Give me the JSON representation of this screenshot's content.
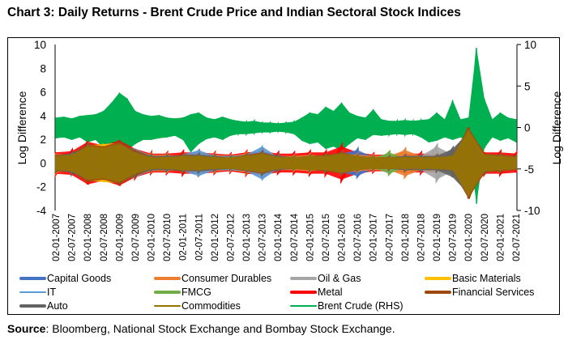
{
  "title": "Chart 3: Daily Returns - Brent Crude Price and Indian Sectoral Stock Indices",
  "source_label": "Source",
  "source_text": ": Bloomberg, National Stock Exchange and Bombay Stock Exchange.",
  "chart_data": {
    "type": "line",
    "title": "Chart 3: Daily Returns - Brent Crude Price and Indian Sectoral Stock Indices",
    "ylabel_left": "Log Difference",
    "ylabel_right": "Log Difference",
    "ylim_left": [
      -4,
      10
    ],
    "ylim_right": [
      -10,
      10
    ],
    "yticks_left": [
      "10",
      "8",
      "6",
      "4",
      "2",
      "0",
      "-2",
      "-4"
    ],
    "yticks_right": [
      "10",
      "5",
      "0",
      "-5",
      "-10"
    ],
    "xtick_labels": [
      "02-01-2007",
      "02-07-2007",
      "02-01-2008",
      "02-07-2008",
      "02-01-2009",
      "02-07-2009",
      "02-01-2010",
      "02-07-2010",
      "02-01-2011",
      "02-07-2011",
      "02-01-2012",
      "02-07-2012",
      "02-01-2013",
      "02-07-2013",
      "02-01-2014",
      "02-07-2014",
      "02-01-2015",
      "02-07-2015",
      "02-01-2016",
      "02-07-2016",
      "02-01-2017",
      "02-07-2017",
      "02-01-2018",
      "02-07-2018",
      "02-01-2019",
      "02-07-2019",
      "02-01-2020",
      "02-07-2020",
      "02-01-2021",
      "02-07-2021"
    ],
    "grid": false,
    "legend_position": "bottom",
    "note": "",
    "index_series_x": [
      "2007-01",
      "2007-07",
      "2008-01",
      "2008-07",
      "2009-01",
      "2009-07",
      "2010-01",
      "2010-07",
      "2011-01",
      "2011-07",
      "2012-01",
      "2012-07",
      "2013-01",
      "2013-07",
      "2014-01",
      "2014-07",
      "2015-01",
      "2015-07",
      "2016-01",
      "2016-07",
      "2017-01",
      "2017-07",
      "2018-01",
      "2018-07",
      "2019-01",
      "2019-07",
      "2020-01",
      "2020-07",
      "2021-01",
      "2021-07"
    ],
    "series": [
      {
        "name": "Capital Goods",
        "axis": "left",
        "color": "#4472C4",
        "width": 3,
        "abs_range": [
          0.7,
          0.8,
          1.5,
          1.2,
          1.7,
          1.0,
          0.6,
          0.6,
          0.6,
          0.7,
          0.6,
          0.5,
          0.7,
          0.8,
          0.6,
          0.5,
          0.6,
          0.6,
          0.8,
          1.1,
          0.5,
          0.5,
          0.6,
          0.6,
          0.6,
          0.7,
          2.6,
          0.7,
          0.6,
          0.5
        ]
      },
      {
        "name": "Consumer Durables",
        "axis": "left",
        "color": "#ED7D31",
        "width": 3,
        "abs_range": [
          0.8,
          0.7,
          1.4,
          1.3,
          1.6,
          1.1,
          0.7,
          0.7,
          0.6,
          0.8,
          0.7,
          0.6,
          0.8,
          0.8,
          0.6,
          0.6,
          0.7,
          0.6,
          0.8,
          0.7,
          0.6,
          0.6,
          1.1,
          0.6,
          0.6,
          0.7,
          2.7,
          0.8,
          0.7,
          0.6
        ]
      },
      {
        "name": "Oil & Gas",
        "axis": "left",
        "color": "#A5A5A5",
        "width": 3,
        "abs_range": [
          0.6,
          0.7,
          1.4,
          1.2,
          1.6,
          0.9,
          0.5,
          0.5,
          0.6,
          0.6,
          0.5,
          0.5,
          0.6,
          0.7,
          0.5,
          0.5,
          0.5,
          0.6,
          0.8,
          0.6,
          0.5,
          0.5,
          0.5,
          0.6,
          1.4,
          0.7,
          2.9,
          0.7,
          0.6,
          0.5
        ]
      },
      {
        "name": "Basic Materials",
        "axis": "left",
        "color": "#FFC000",
        "width": 3,
        "abs_range": [
          0.6,
          0.7,
          1.5,
          1.6,
          1.7,
          1.0,
          0.6,
          0.6,
          0.6,
          0.7,
          0.6,
          0.5,
          0.7,
          0.8,
          0.6,
          0.5,
          0.6,
          0.6,
          0.9,
          0.6,
          0.5,
          0.6,
          0.6,
          0.6,
          0.6,
          0.7,
          2.5,
          0.7,
          0.6,
          0.5
        ]
      },
      {
        "name": "IT",
        "axis": "left",
        "color": "#5B9BD5",
        "width": 1.5,
        "abs_range": [
          0.6,
          0.7,
          1.3,
          1.1,
          1.5,
          1.2,
          0.6,
          0.6,
          0.7,
          1.1,
          0.6,
          0.6,
          0.7,
          1.4,
          0.5,
          0.5,
          0.5,
          0.6,
          0.7,
          0.5,
          0.5,
          0.5,
          0.5,
          0.5,
          0.5,
          0.6,
          2.4,
          0.7,
          0.6,
          0.5
        ]
      },
      {
        "name": "FMCG",
        "axis": "left",
        "color": "#70AD47",
        "width": 3,
        "abs_range": [
          0.5,
          0.5,
          1.0,
          0.9,
          1.1,
          0.7,
          0.4,
          0.4,
          0.5,
          0.5,
          0.4,
          0.4,
          0.5,
          0.6,
          0.4,
          0.4,
          0.4,
          0.5,
          0.6,
          0.4,
          0.4,
          0.9,
          0.4,
          0.4,
          0.4,
          0.5,
          2.2,
          0.5,
          0.5,
          0.4
        ]
      },
      {
        "name": "Metal",
        "axis": "left",
        "color": "#FF0000",
        "width": 3,
        "abs_range": [
          0.9,
          1.0,
          1.8,
          1.5,
          1.9,
          1.2,
          0.8,
          0.8,
          0.9,
          0.9,
          0.8,
          0.7,
          0.9,
          1.0,
          0.8,
          0.8,
          0.9,
          0.9,
          1.4,
          0.9,
          0.7,
          0.7,
          0.8,
          0.8,
          0.8,
          0.9,
          2.8,
          0.9,
          0.9,
          0.8
        ]
      },
      {
        "name": "Financial Services",
        "axis": "left",
        "color": "#9E480E",
        "width": 3,
        "abs_range": [
          0.7,
          0.8,
          1.6,
          1.4,
          1.8,
          1.1,
          0.6,
          0.6,
          0.7,
          0.7,
          0.6,
          0.5,
          0.7,
          0.9,
          0.6,
          0.5,
          0.6,
          0.7,
          0.9,
          0.6,
          0.5,
          0.5,
          0.6,
          0.6,
          0.6,
          0.7,
          3.0,
          0.8,
          0.7,
          0.6
        ]
      },
      {
        "name": "Auto",
        "axis": "left",
        "color": "#636363",
        "width": 3,
        "abs_range": [
          0.6,
          0.8,
          1.4,
          1.2,
          1.6,
          0.9,
          0.6,
          0.6,
          0.6,
          0.7,
          0.6,
          0.5,
          0.6,
          0.8,
          0.6,
          0.5,
          0.6,
          0.6,
          0.8,
          0.6,
          0.5,
          0.5,
          0.6,
          0.6,
          0.6,
          1.2,
          2.6,
          0.7,
          0.6,
          0.5
        ]
      },
      {
        "name": "Commodities",
        "axis": "left",
        "color": "#997300",
        "width": 1.5,
        "abs_range": [
          0.6,
          0.7,
          1.4,
          1.3,
          1.6,
          0.9,
          0.5,
          0.5,
          0.6,
          0.6,
          0.5,
          0.5,
          0.6,
          0.8,
          0.5,
          0.5,
          0.6,
          0.6,
          0.8,
          0.6,
          0.5,
          0.5,
          0.5,
          0.5,
          0.5,
          0.6,
          2.8,
          0.7,
          0.6,
          0.5
        ]
      },
      {
        "name": "Brent Crude (RHS)",
        "axis": "right",
        "color": "#00B050",
        "width": 1.5,
        "x": [
          "2007-01",
          "2007-04",
          "2007-07",
          "2007-10",
          "2008-01",
          "2008-04",
          "2008-07",
          "2008-10",
          "2009-01",
          "2009-04",
          "2009-07",
          "2009-10",
          "2010-01",
          "2010-04",
          "2010-07",
          "2010-10",
          "2011-01",
          "2011-04",
          "2011-07",
          "2011-10",
          "2012-01",
          "2012-04",
          "2012-07",
          "2012-10",
          "2013-01",
          "2013-04",
          "2013-07",
          "2013-10",
          "2014-01",
          "2014-04",
          "2014-07",
          "2014-10",
          "2015-01",
          "2015-04",
          "2015-07",
          "2015-10",
          "2016-01",
          "2016-04",
          "2016-07",
          "2016-10",
          "2017-01",
          "2017-04",
          "2017-07",
          "2017-10",
          "2018-01",
          "2018-04",
          "2018-07",
          "2018-10",
          "2019-01",
          "2019-04",
          "2019-07",
          "2019-10",
          "2020-01",
          "2020-04",
          "2020-07",
          "2020-10",
          "2021-01",
          "2021-04",
          "2021-07"
        ],
        "high": [
          1.2,
          1.3,
          1.1,
          1.4,
          1.5,
          1.6,
          2.0,
          3.0,
          4.2,
          3.5,
          2.0,
          1.6,
          1.4,
          1.5,
          1.2,
          1.1,
          1.2,
          1.6,
          1.8,
          1.2,
          1.0,
          1.3,
          1.0,
          0.8,
          0.7,
          0.8,
          0.6,
          0.6,
          0.5,
          0.6,
          0.7,
          1.2,
          1.8,
          1.6,
          2.5,
          2.0,
          3.0,
          1.8,
          1.4,
          1.2,
          2.2,
          1.0,
          0.8,
          0.8,
          0.9,
          0.8,
          0.9,
          1.0,
          1.8,
          1.0,
          3.3,
          1.0,
          1.2,
          9.6,
          3.5,
          1.0,
          1.8,
          1.2,
          1.0
        ],
        "low": [
          -1.3,
          -1.2,
          -1.5,
          -1.2,
          -1.8,
          -1.5,
          -2.5,
          -3.8,
          -3.5,
          -2.8,
          -2.0,
          -1.5,
          -1.5,
          -1.3,
          -1.2,
          -1.0,
          -1.5,
          -3.0,
          -2.0,
          -1.4,
          -1.2,
          -1.5,
          -1.0,
          -0.8,
          -0.8,
          -0.7,
          -0.6,
          -0.6,
          -0.5,
          -0.6,
          -0.8,
          -1.6,
          -2.0,
          -1.8,
          -2.6,
          -2.3,
          -2.8,
          -2.0,
          -1.3,
          -1.5,
          -0.9,
          -1.0,
          -0.9,
          -0.8,
          -0.9,
          -0.8,
          -1.2,
          -1.8,
          -1.6,
          -1.2,
          -1.5,
          -1.2,
          -1.8,
          -9.2,
          -2.5,
          -1.2,
          -1.6,
          -1.3,
          -1.8
        ]
      }
    ]
  }
}
